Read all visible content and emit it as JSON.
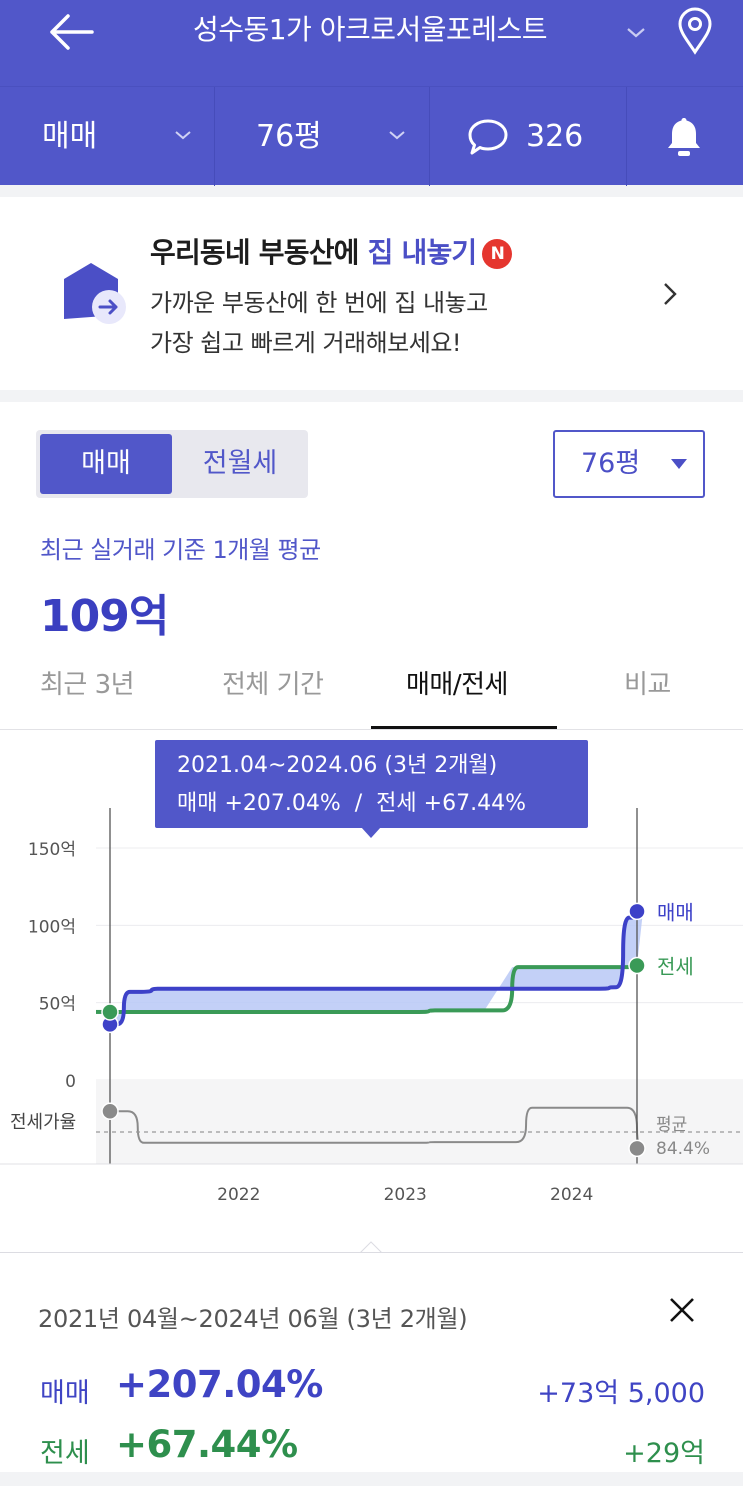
{
  "header": {
    "title": "성수동1가 아크로서울포레스트",
    "back_icon": "arrow-left-icon",
    "location_icon": "map-pin-icon"
  },
  "filters": {
    "deal_type": "매매",
    "area": "76평",
    "comment_count": "326",
    "comment_icon": "chat-bubble-icon",
    "alert_icon": "bell-icon"
  },
  "banner": {
    "title_prefix": "우리동네 부동산에 ",
    "title_highlight": "집 내놓기",
    "badge": "N",
    "line1": "가까운 부동산에 한 번에 집 내놓고",
    "line2": "가장 쉽고 빠르게 거래해보세요!",
    "icon": "house-arrow-icon"
  },
  "segment": {
    "active": "매매",
    "inactive": "전월세"
  },
  "area_select": "76평",
  "average": {
    "label": "최근 실거래 기준 1개월 평균",
    "value": "109억"
  },
  "tabs": [
    {
      "label": "최근 3년",
      "active": false
    },
    {
      "label": "전체 기간",
      "active": false
    },
    {
      "label": "매매/전세",
      "active": true
    },
    {
      "label": "비교",
      "active": false
    }
  ],
  "tooltip": {
    "line1": "2021.04~2024.06 (3년 2개월)",
    "line2": "매매 +207.04%  /  전세 +67.44%"
  },
  "chart_data": {
    "type": "line",
    "y_unit": "억",
    "y_ticks": [
      "150억",
      "100억",
      "50억",
      "0"
    ],
    "ylim": [
      0,
      150
    ],
    "x_ticks": [
      "2022",
      "2023",
      "2024"
    ],
    "series": [
      {
        "name": "매매",
        "color": "#3d41c8",
        "points": [
          [
            "2021-04",
            36
          ],
          [
            "2021-05",
            57
          ],
          [
            "2021-07",
            59
          ],
          [
            "2022-06",
            59
          ],
          [
            "2023-06",
            59
          ],
          [
            "2024-01",
            59
          ],
          [
            "2024-04",
            60
          ],
          [
            "2024-05",
            105
          ],
          [
            "2024-06",
            109
          ]
        ]
      },
      {
        "name": "전세",
        "color": "#3a9a57",
        "points": [
          [
            "2021-04",
            44
          ],
          [
            "2022-01",
            44
          ],
          [
            "2023-01",
            44
          ],
          [
            "2023-03",
            45
          ],
          [
            "2023-07",
            45
          ],
          [
            "2023-09",
            73
          ],
          [
            "2024-06",
            74
          ]
        ]
      }
    ],
    "ratio_panel": {
      "label": "전세가율",
      "avg_label": "평균",
      "avg_value": "84.4%",
      "color": "#888888",
      "points": [
        [
          "2021-04",
          121
        ],
        [
          "2021-06",
          76
        ],
        [
          "2022-06",
          76
        ],
        [
          "2023-01",
          76
        ],
        [
          "2023-03",
          77
        ],
        [
          "2023-08",
          77
        ],
        [
          "2023-10",
          126
        ],
        [
          "2024-04",
          126
        ],
        [
          "2024-06",
          68
        ]
      ]
    }
  },
  "summary": {
    "period": "2021년 04월~2024년 06월 (3년 2개월)",
    "close_icon": "close-icon",
    "rows": [
      {
        "label": "매매",
        "pct": "+207.04%",
        "amount": "+73억 5,000"
      },
      {
        "label": "전세",
        "pct": "+67.44%",
        "amount": "+29억"
      }
    ]
  }
}
